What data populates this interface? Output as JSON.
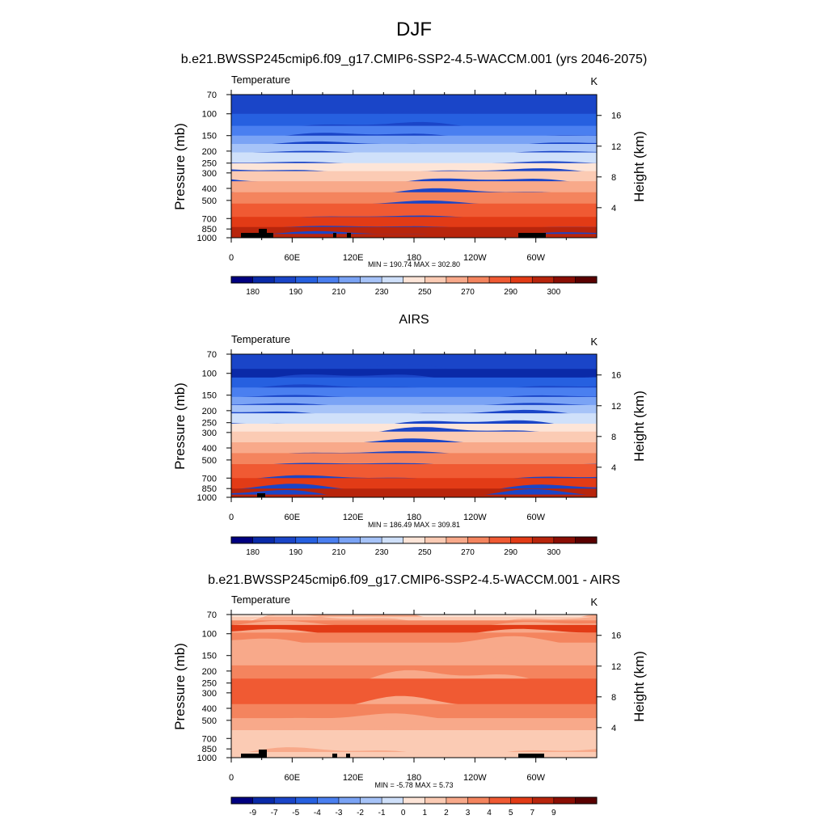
{
  "title": "DJF",
  "palette": [
    "#000080",
    "#0a2aa8",
    "#1a45c8",
    "#2660e0",
    "#4a7ff0",
    "#7aa3f5",
    "#a6c3f8",
    "#cfe0fa",
    "#fde5d8",
    "#fbcbb4",
    "#f8a98a",
    "#f4845e",
    "#f05a33",
    "#e23b16",
    "#b8250c",
    "#8a0e04",
    "#5a0000"
  ],
  "chart_data": [
    {
      "type": "heatmap",
      "title": "b.e21.BWSSP245cmip6.f09_g17.CMIP6-SSP2-4.5-WACCM.001 (yrs 2046-2075)",
      "left_label": "Temperature",
      "units": "K",
      "ylabel": "Pressure (mb)",
      "ylabel_right": "Height (km)",
      "x_ticks": [
        "0",
        "60E",
        "120E",
        "180",
        "120W",
        "60W"
      ],
      "x_range": [
        0,
        360
      ],
      "y_ticks": [
        "70",
        "100",
        "150",
        "200",
        "250",
        "300",
        "400",
        "500",
        "700",
        "850",
        "1000"
      ],
      "y_range_mb": [
        70,
        1000
      ],
      "y_scale": "log",
      "height_ticks": [
        "16",
        "12",
        "8",
        "4"
      ],
      "min_max": "MIN = 190.74  MAX = 302.80",
      "colorbar_labels": [
        "180",
        "190",
        "210",
        "230",
        "250",
        "270",
        "290",
        "300"
      ]
    },
    {
      "type": "heatmap",
      "title": "AIRS",
      "left_label": "Temperature",
      "units": "K",
      "ylabel": "Pressure (mb)",
      "ylabel_right": "Height (km)",
      "x_ticks": [
        "0",
        "60E",
        "120E",
        "180",
        "120W",
        "60W"
      ],
      "x_range": [
        0,
        360
      ],
      "y_ticks": [
        "70",
        "100",
        "150",
        "200",
        "250",
        "300",
        "400",
        "500",
        "700",
        "850",
        "1000"
      ],
      "y_range_mb": [
        70,
        1000
      ],
      "y_scale": "log",
      "height_ticks": [
        "16",
        "12",
        "8",
        "4"
      ],
      "min_max": "MIN = 186.49  MAX = 309.81",
      "colorbar_labels": [
        "180",
        "190",
        "210",
        "230",
        "250",
        "270",
        "290",
        "300"
      ]
    },
    {
      "type": "heatmap",
      "title": "b.e21.BWSSP245cmip6.f09_g17.CMIP6-SSP2-4.5-WACCM.001 - AIRS",
      "left_label": "Temperature",
      "units": "K",
      "ylabel": "Pressure (mb)",
      "ylabel_right": "Height (km)",
      "x_ticks": [
        "0",
        "60E",
        "120E",
        "180",
        "120W",
        "60W"
      ],
      "x_range": [
        0,
        360
      ],
      "y_ticks": [
        "70",
        "100",
        "150",
        "200",
        "250",
        "300",
        "400",
        "500",
        "700",
        "850",
        "1000"
      ],
      "y_range_mb": [
        70,
        1000
      ],
      "y_scale": "log",
      "height_ticks": [
        "16",
        "12",
        "8",
        "4"
      ],
      "min_max": "MIN =  -5.78  MAX =   5.73",
      "colorbar_labels": [
        "-9",
        "-7",
        "-5",
        "-4",
        "-3",
        "-2",
        "-1",
        "0",
        "1",
        "2",
        "3",
        "4",
        "5",
        "7",
        "9"
      ]
    }
  ]
}
